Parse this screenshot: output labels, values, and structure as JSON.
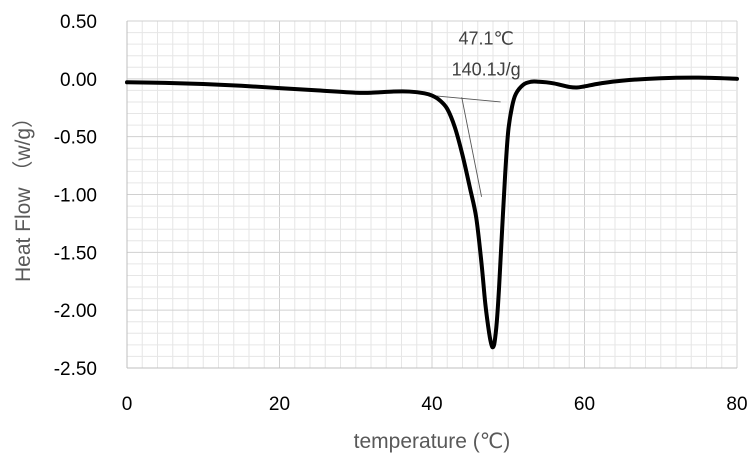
{
  "chart_data": {
    "type": "line",
    "xlabel": "temperature (℃)",
    "ylabel": "Heat Flow （w/g）",
    "xlim": [
      0,
      80
    ],
    "ylim": [
      -2.5,
      0.5
    ],
    "x_ticks": [
      0,
      20,
      40,
      60,
      80
    ],
    "x_tick_labels": [
      "0",
      "20",
      "40",
      "60",
      "80"
    ],
    "y_ticks": [
      0.5,
      0,
      -0.5,
      -1,
      -1.5,
      -2,
      -2.5
    ],
    "y_tick_labels": [
      "0.50",
      "0.00",
      "-0.50",
      "-1.00",
      "-1.50",
      "-2.00",
      "-2.50"
    ],
    "grid": true,
    "legend": "none",
    "annotations": [
      {
        "text": "47.1℃",
        "x": 47.1,
        "y": 0.35
      },
      {
        "text": "140.1J/g",
        "x": 47.1,
        "y": 0.08
      }
    ],
    "series": [
      {
        "color": "#000000",
        "x": [
          0,
          5,
          10,
          15,
          20,
          25,
          30,
          32,
          35,
          37,
          39,
          40,
          41,
          42,
          43,
          44,
          45,
          45.8,
          46.5,
          47,
          47.5,
          47.8,
          48.0,
          48.2,
          48.5,
          48.8,
          49.2,
          49.6,
          50,
          50.5,
          51,
          52,
          53,
          54,
          55,
          56,
          57,
          58,
          59,
          60,
          62,
          65,
          70,
          75,
          80
        ],
        "y": [
          -0.03,
          -0.035,
          -0.045,
          -0.06,
          -0.08,
          -0.1,
          -0.12,
          -0.12,
          -0.11,
          -0.11,
          -0.125,
          -0.145,
          -0.185,
          -0.26,
          -0.42,
          -0.66,
          -0.95,
          -1.2,
          -1.6,
          -1.95,
          -2.2,
          -2.3,
          -2.32,
          -2.28,
          -2.1,
          -1.8,
          -1.3,
          -0.82,
          -0.45,
          -0.24,
          -0.13,
          -0.05,
          -0.025,
          -0.025,
          -0.03,
          -0.04,
          -0.055,
          -0.07,
          -0.075,
          -0.065,
          -0.04,
          -0.015,
          0.005,
          0.01,
          0.0
        ]
      }
    ],
    "construction_lines": [
      {
        "x": [
          40,
          49
        ],
        "y": [
          -0.145,
          -0.2
        ]
      },
      {
        "x": [
          43.9,
          46.5
        ],
        "y": [
          -0.16,
          -1.02
        ]
      }
    ]
  }
}
